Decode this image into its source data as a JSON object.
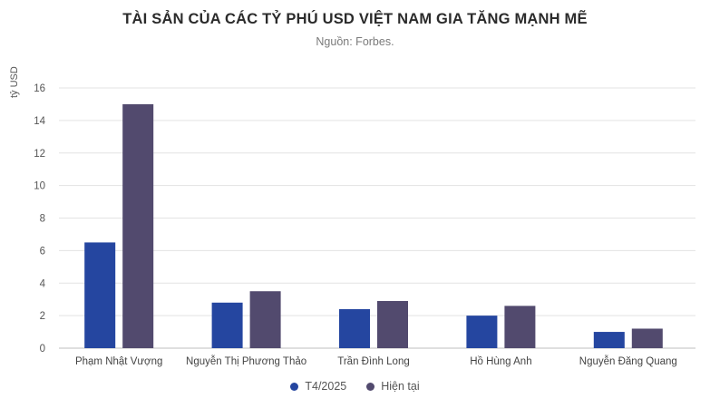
{
  "chart_data": {
    "type": "bar",
    "title": "TÀI SẢN CỦA CÁC TỶ PHÚ USD VIỆT NAM GIA TĂNG MẠNH MẼ",
    "subtitle": "Nguồn: Forbes.",
    "xlabel": "",
    "ylabel": "tỷ USD",
    "ylim": [
      0,
      16
    ],
    "yticks": [
      "0",
      "2",
      "4",
      "6",
      "8",
      "10",
      "12",
      "14",
      "16"
    ],
    "categories": [
      "Phạm Nhật Vượng",
      "Nguyễn Thị Phương Thảo",
      "Trần Đình Long",
      "Hồ Hùng Anh",
      "Nguyễn Đăng Quang"
    ],
    "series": [
      {
        "name": "T4/2025",
        "color": "#2546a0",
        "values": [
          6.5,
          2.8,
          2.4,
          2.0,
          1.0
        ]
      },
      {
        "name": "Hiện tại",
        "color": "#524a6e",
        "values": [
          15.0,
          3.5,
          2.9,
          2.6,
          1.2
        ]
      }
    ],
    "grid": true,
    "legend": "bottom-center"
  }
}
